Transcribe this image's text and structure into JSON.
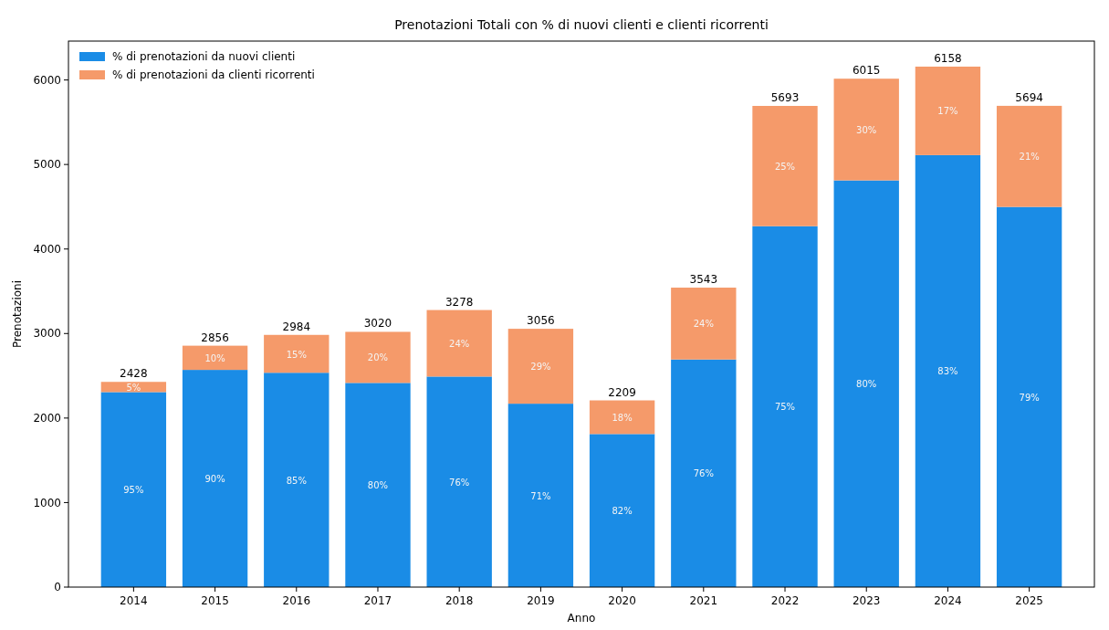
{
  "chart_data": {
    "type": "bar",
    "title": "Prenotazioni Totali con % di nuovi clienti e clienti ricorrenti",
    "xlabel": "Anno",
    "ylabel": "Prenotazioni",
    "categories": [
      "2014",
      "2015",
      "2016",
      "2017",
      "2018",
      "2019",
      "2020",
      "2021",
      "2022",
      "2023",
      "2024",
      "2025"
    ],
    "stacked": true,
    "legend": "top left",
    "grid": false,
    "ylim": [
      0,
      6460
    ],
    "yticks": [
      0,
      1000,
      2000,
      3000,
      4000,
      5000,
      6000
    ],
    "series": [
      {
        "name": "% di prenotazioni da nuovi clienti",
        "color": "#1a8ce6",
        "values": [
          2307,
          2570,
          2536,
          2416,
          2491,
          2170,
          1811,
          2693,
          4270,
          4812,
          5111,
          4498
        ]
      },
      {
        "name": "% di prenotazioni da clienti ricorrenti",
        "color": "#f59a6a",
        "values": [
          121,
          286,
          448,
          604,
          787,
          886,
          398,
          850,
          1423,
          1203,
          1047,
          1196
        ]
      }
    ],
    "totals": [
      "2428",
      "2856",
      "2984",
      "3020",
      "3278",
      "3056",
      "2209",
      "3543",
      "5693",
      "6015",
      "6158",
      "5694"
    ],
    "annotations": [
      "95%",
      "90%",
      "85%",
      "80%",
      "76%",
      "71%",
      "82%",
      "76%",
      "75%",
      "80%",
      "83%",
      "79%",
      "5%",
      "10%",
      "15%",
      "20%",
      "24%",
      "29%",
      "18%",
      "24%",
      "25%",
      "30%",
      "17%",
      "21%"
    ]
  }
}
